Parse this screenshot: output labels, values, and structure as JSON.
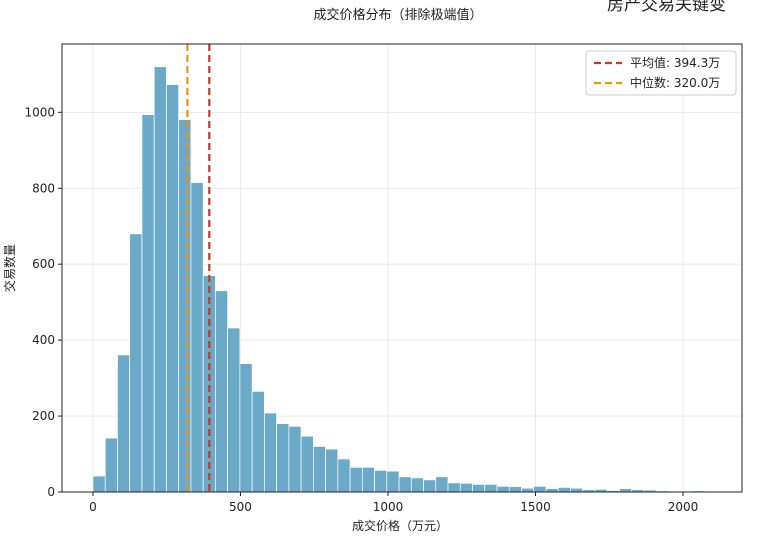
{
  "super_title": "房产交易关键变",
  "chart_data": {
    "type": "bar",
    "title": "成交价格分布（排除极端值）",
    "xlabel": "成交价格（万元）",
    "ylabel": "交易数量",
    "bin_width": 41.5,
    "x_start": 0,
    "xlim": [
      -105,
      2200
    ],
    "ylim": [
      0,
      1180
    ],
    "xticks": [
      0,
      500,
      1000,
      1500,
      2000
    ],
    "yticks": [
      0,
      200,
      400,
      600,
      800,
      1000
    ],
    "grid": true,
    "legend_position": "top-right",
    "bar_color": "#6aaac8",
    "counts": [
      42,
      142,
      361,
      680,
      994,
      1120,
      1073,
      981,
      815,
      570,
      530,
      432,
      338,
      265,
      208,
      180,
      173,
      147,
      120,
      113,
      87,
      65,
      65,
      57,
      55,
      40,
      37,
      32,
      40,
      24,
      23,
      20,
      20,
      15,
      14,
      10,
      15,
      9,
      12,
      10,
      6,
      7,
      4,
      9,
      6,
      5,
      3,
      2,
      2,
      3
    ],
    "reference_lines": [
      {
        "label": "平均值: 394.3万",
        "value": 394.3,
        "color": "#c0392b"
      },
      {
        "label": "中位数: 320.0万",
        "value": 320.0,
        "color": "#e8940f"
      }
    ]
  }
}
